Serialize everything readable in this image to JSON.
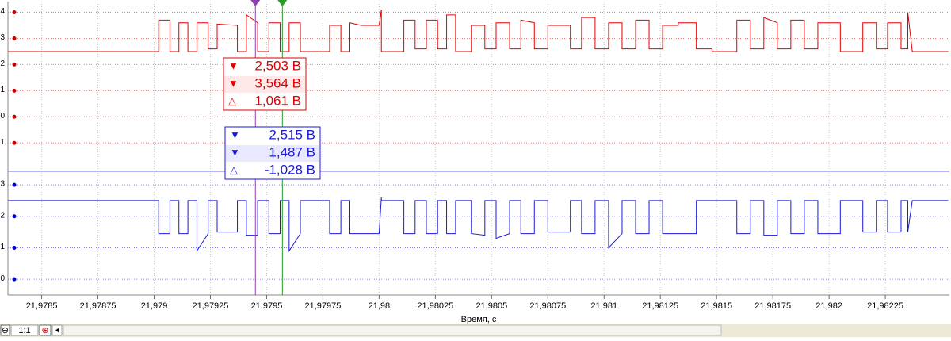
{
  "chart_data": {
    "type": "line",
    "x_label": "Время, с",
    "xlim": [
      21.97835,
      21.982535
    ],
    "xticks": [
      {
        "value": 21.9785,
        "label": "21,9785"
      },
      {
        "value": 21.97875,
        "label": "21,97875"
      },
      {
        "value": 21.979,
        "label": "21,979"
      },
      {
        "value": 21.97925,
        "label": "21,97925"
      },
      {
        "value": 21.9795,
        "label": "21,9795"
      },
      {
        "value": 21.97975,
        "label": "21,97975"
      },
      {
        "value": 21.98,
        "label": "21,98"
      },
      {
        "value": 21.98025,
        "label": "21,98025"
      },
      {
        "value": 21.9805,
        "label": "21,9805"
      },
      {
        "value": 21.98075,
        "label": "21,98075"
      },
      {
        "value": 21.981,
        "label": "21,981"
      },
      {
        "value": 21.98125,
        "label": "21,98125"
      },
      {
        "value": 21.9815,
        "label": "21,9815"
      },
      {
        "value": 21.98175,
        "label": "21,98175"
      },
      {
        "value": 21.982,
        "label": "21,982"
      },
      {
        "value": 21.98225,
        "label": "21,98225"
      }
    ],
    "ylim": [
      -1.6,
      4.35
    ],
    "yticks": [
      -1,
      0,
      1,
      2,
      3,
      4
    ],
    "y2lim": [
      -0.5,
      3.38
    ],
    "y2ticks": [
      0,
      1,
      2,
      3
    ],
    "grid": true,
    "x": [
      21.97835,
      21.97902,
      21.97902,
      21.97907,
      21.97907,
      21.97911,
      21.97911,
      21.97915,
      21.97915,
      21.97919,
      21.97919,
      21.97924,
      21.97924,
      21.97928,
      21.97928,
      21.97937,
      21.97937,
      21.97941,
      21.97941,
      21.97946,
      21.97946,
      21.97951,
      21.97951,
      21.97956,
      21.97956,
      21.9796,
      21.9796,
      21.97965,
      21.97965,
      21.97978,
      21.97978,
      21.97983,
      21.97983,
      21.97987,
      21.97987,
      21.97992,
      21.98,
      21.98001,
      21.98001,
      21.98011,
      21.98011,
      21.98016,
      21.98016,
      21.98021,
      21.98021,
      21.98026,
      21.98026,
      21.9803,
      21.9803,
      21.98034,
      21.98034,
      21.98041,
      21.98041,
      21.98047,
      21.98047,
      21.98052,
      21.98052,
      21.98058,
      21.98058,
      21.98063,
      21.98063,
      21.98069,
      21.98069,
      21.98075,
      21.98075,
      21.98085,
      21.98085,
      21.9809,
      21.9809,
      21.98096,
      21.98096,
      21.98102,
      21.98102,
      21.98108,
      21.98108,
      21.98114,
      21.98114,
      21.9812,
      21.9812,
      21.98126,
      21.98126,
      21.98133,
      21.98133,
      21.98141,
      21.98141,
      21.98148,
      21.98148,
      21.98159,
      21.98159,
      21.98165,
      21.98165,
      21.98171,
      21.98171,
      21.98177,
      21.98177,
      21.98183,
      21.98183,
      21.98189,
      21.98189,
      21.98195,
      21.98195,
      21.98205,
      21.98205,
      21.98215,
      21.98215,
      21.98221,
      21.98221,
      21.98226,
      21.98226,
      21.98232,
      21.98232,
      21.98235,
      21.98235,
      21.98237,
      21.98253
    ],
    "series": [
      {
        "color": "#e00000",
        "values": [
          2.5,
          2.5,
          3.7,
          3.7,
          2.5,
          2.5,
          3.6,
          3.6,
          2.5,
          2.5,
          3.6,
          3.6,
          2.6,
          2.6,
          3.55,
          3.5,
          2.5,
          2.5,
          3.9,
          3.6,
          2.5,
          2.5,
          3.6,
          3.6,
          2.5,
          2.5,
          3.6,
          3.6,
          2.5,
          2.5,
          3.5,
          3.5,
          2.5,
          2.5,
          3.6,
          3.5,
          3.5,
          4.1,
          2.5,
          2.5,
          3.7,
          3.7,
          2.6,
          2.6,
          3.7,
          3.7,
          2.6,
          2.6,
          3.9,
          3.9,
          2.5,
          2.5,
          3.5,
          3.5,
          2.6,
          2.6,
          3.6,
          3.6,
          2.6,
          2.6,
          3.7,
          3.6,
          2.6,
          2.6,
          3.5,
          3.5,
          2.6,
          2.6,
          3.8,
          3.8,
          2.6,
          2.6,
          3.6,
          3.6,
          2.6,
          2.6,
          3.7,
          3.7,
          2.6,
          2.6,
          3.5,
          3.5,
          3.6,
          3.6,
          2.6,
          2.6,
          2.5,
          2.5,
          3.7,
          3.7,
          2.6,
          2.6,
          3.8,
          3.6,
          2.6,
          2.6,
          3.7,
          3.7,
          2.6,
          2.6,
          3.6,
          3.6,
          2.5,
          2.5,
          3.6,
          3.6,
          2.6,
          2.6,
          3.6,
          3.6,
          2.6,
          2.6,
          4.0,
          2.5,
          2.5
        ]
      },
      {
        "color": "#1a1ad6",
        "axis": "y2",
        "values": [
          2.5,
          2.5,
          1.45,
          1.45,
          2.5,
          2.5,
          1.45,
          1.45,
          2.5,
          2.5,
          0.9,
          1.45,
          2.5,
          2.5,
          1.5,
          1.5,
          2.5,
          2.5,
          1.4,
          1.4,
          2.5,
          2.5,
          1.45,
          1.45,
          2.5,
          2.5,
          0.9,
          1.45,
          2.5,
          2.5,
          1.45,
          1.45,
          2.5,
          2.5,
          1.45,
          1.45,
          1.45,
          2.6,
          2.5,
          2.5,
          1.45,
          1.45,
          2.5,
          2.5,
          1.45,
          1.45,
          2.5,
          2.5,
          1.45,
          1.45,
          2.5,
          2.5,
          1.45,
          1.4,
          2.5,
          2.5,
          1.3,
          1.45,
          2.5,
          2.5,
          1.45,
          1.45,
          2.5,
          2.5,
          1.5,
          1.5,
          2.5,
          2.5,
          1.45,
          1.45,
          2.5,
          2.5,
          1.0,
          1.45,
          2.5,
          2.5,
          1.45,
          1.45,
          2.5,
          2.5,
          1.45,
          1.45,
          1.45,
          1.45,
          2.5,
          2.5,
          2.5,
          2.5,
          1.45,
          1.45,
          2.5,
          2.5,
          1.4,
          1.4,
          2.5,
          2.5,
          1.45,
          1.45,
          2.5,
          2.5,
          1.45,
          1.45,
          2.5,
          2.5,
          1.5,
          1.5,
          2.5,
          2.5,
          1.5,
          1.5,
          2.5,
          2.5,
          1.5,
          2.5,
          2.5
        ]
      }
    ],
    "cursors": [
      {
        "color": "#8e3fb0",
        "x": 21.97945
      },
      {
        "color": "#2a9a2a",
        "x": 21.97957
      }
    ],
    "readouts": [
      {
        "color": "#e00000",
        "rows": [
          "2,503 В",
          "3,564 В",
          "1,061 В"
        ]
      },
      {
        "color": "#1a1ad6",
        "rows": [
          "2,515 В",
          "1,487 В",
          "-1,028 В"
        ]
      }
    ]
  },
  "ui": {
    "zoom_label": "1:1"
  }
}
